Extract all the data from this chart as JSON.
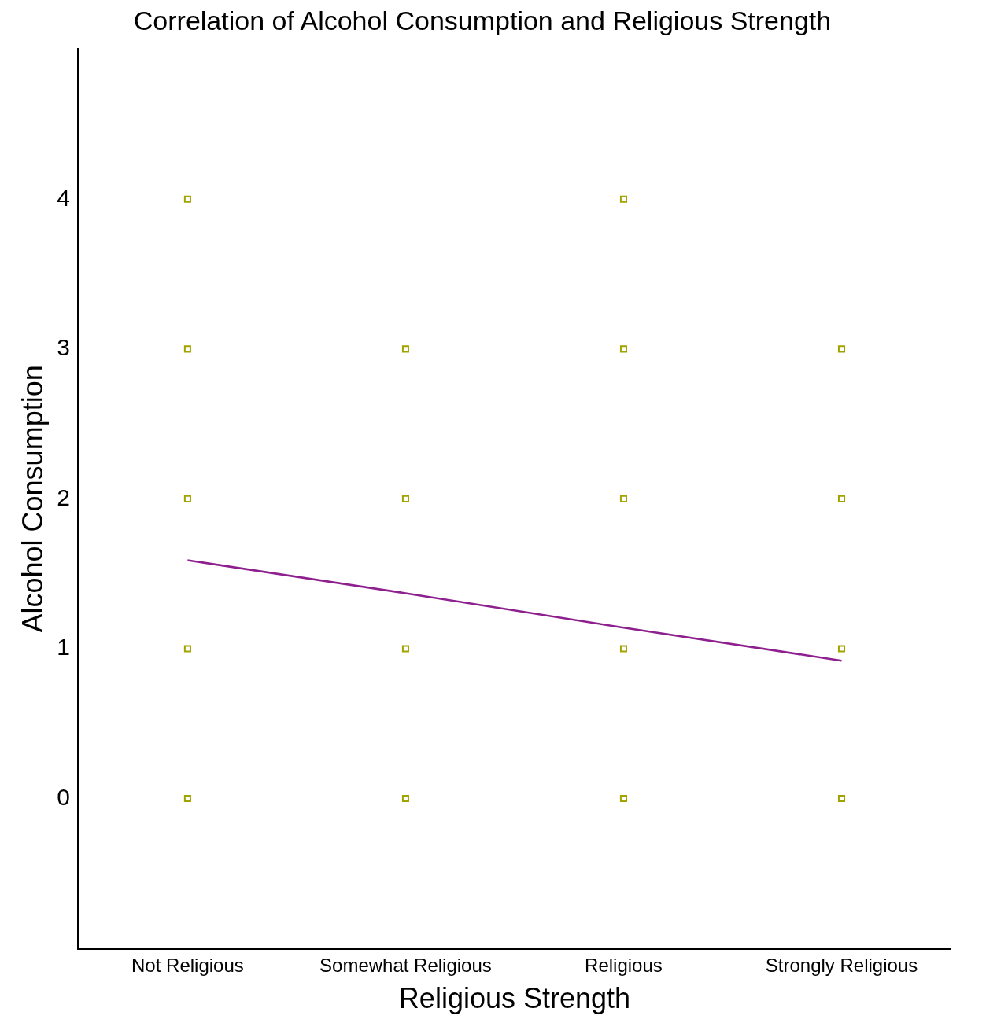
{
  "chart_data": {
    "type": "scatter",
    "title": "Correlation of Alcohol Consumption and Religious Strength",
    "xlabel": "Religious Strength",
    "ylabel": "Alcohol Consumption",
    "categories": [
      "Not Religious",
      "Somewhat Religious",
      "Religious",
      "Strongly Religious"
    ],
    "series": [
      {
        "marker": "square",
        "color": "#a3a300",
        "x": [
          "Not Religious",
          "Not Religious",
          "Not Religious",
          "Not Religious",
          "Not Religious",
          "Somewhat Religious",
          "Somewhat Religious",
          "Somewhat Religious",
          "Somewhat Religious",
          "Religious",
          "Religious",
          "Religious",
          "Religious",
          "Religious",
          "Strongly Religious",
          "Strongly Religious",
          "Strongly Religious",
          "Strongly Religious"
        ],
        "values": [
          0,
          1,
          2,
          3,
          4,
          0,
          1,
          2,
          3,
          0,
          1,
          2,
          3,
          4,
          0,
          1,
          2,
          3
        ]
      },
      {
        "type": "line",
        "marker": "none",
        "color": "#8e1f8e",
        "x": [
          "Not Religious",
          "Somewhat Religious",
          "Religious",
          "Strongly Religious"
        ],
        "values": [
          1.59,
          1.37,
          1.14,
          0.92
        ]
      }
    ],
    "ylim": [
      -1,
      5
    ],
    "yticks": [
      0,
      1,
      2,
      3,
      4
    ],
    "grid": false,
    "legend": false
  }
}
